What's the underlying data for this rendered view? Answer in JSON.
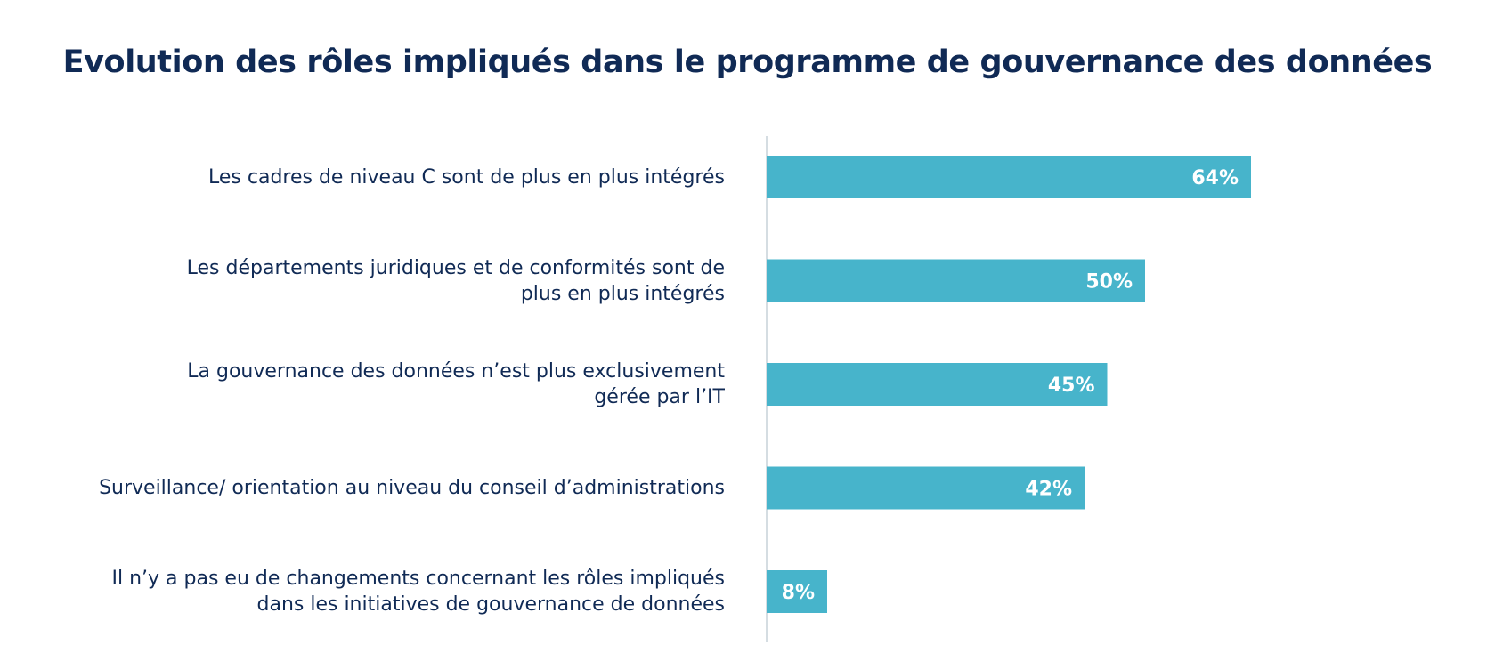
{
  "title": "Evolution des rôles impliqués dans le programme de gouvernance des données",
  "colors": {
    "bar": "#47b4cb",
    "bar_label": "#ffffff",
    "title": "#102a55",
    "axis": "#d5dde2"
  },
  "chart_data": {
    "type": "bar",
    "orientation": "horizontal",
    "title": "Evolution des rôles impliqués dans le programme de gouvernance des données",
    "xlabel": "",
    "ylabel": "",
    "xlim": [
      0,
      100
    ],
    "grid": false,
    "categories": [
      [
        "Les cadres de niveau C sont de plus en plus intégrés"
      ],
      [
        "Les départements juridiques et de conformités sont de",
        "plus en plus intégrés"
      ],
      [
        "La gouvernance des données n’est plus exclusivement",
        "gérée par l’IT"
      ],
      [
        "Surveillance/ orientation au niveau du conseil d’administrations"
      ],
      [
        "Il n’y a pas eu de changements concernant les rôles impliqués",
        "dans les initiatives de gouvernance de données"
      ]
    ],
    "values": [
      64,
      50,
      45,
      42,
      8
    ],
    "value_labels": [
      "64%",
      "50%",
      "45%",
      "42%",
      "8%"
    ]
  }
}
